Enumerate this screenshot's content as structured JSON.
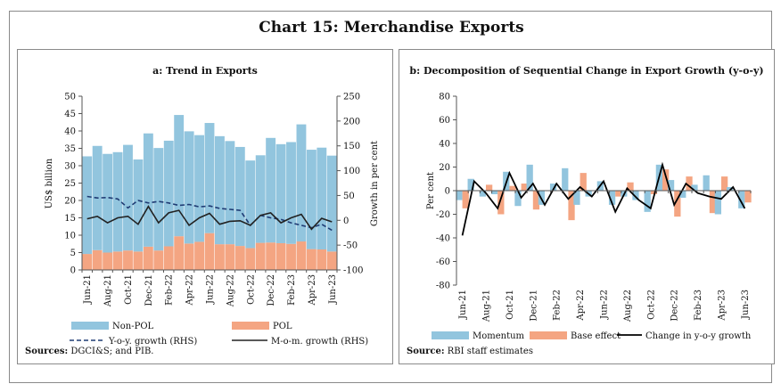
{
  "title": "Chart 15: Merchandise Exports",
  "chart_data": [
    {
      "type": "bar",
      "title": "a: Trend in Exports",
      "ylabel": "US$ billion",
      "y2label": "Growth in per cent",
      "ylim": [
        0,
        50
      ],
      "y2lim": [
        -100,
        250
      ],
      "yticks": [
        0,
        5,
        10,
        15,
        20,
        25,
        30,
        35,
        40,
        45,
        50
      ],
      "y2ticks": [
        -100,
        -50,
        0,
        50,
        100,
        150,
        200,
        250
      ],
      "x": [
        "Jun-21",
        "Jul-21",
        "Aug-21",
        "Sep-21",
        "Oct-21",
        "Nov-21",
        "Dec-21",
        "Jan-22",
        "Feb-22",
        "Mar-22",
        "Apr-22",
        "May-22",
        "Jun-22",
        "Jul-22",
        "Aug-22",
        "Sep-22",
        "Oct-22",
        "Nov-22",
        "Dec-22",
        "Jan-23",
        "Feb-23",
        "Mar-23",
        "Apr-23",
        "May-23",
        "Jun-23"
      ],
      "xtick_labels": [
        "Jun-21",
        "Aug-21",
        "Oct-21",
        "Dec-21",
        "Feb-22",
        "Apr-22",
        "Jun-22",
        "Aug-22",
        "Oct-22",
        "Dec-22",
        "Feb-23",
        "Apr-23",
        "Jun-23"
      ],
      "series": [
        {
          "name": "POL",
          "kind": "bar",
          "color": "#f4a582",
          "values": [
            4.6,
            5.7,
            5.0,
            5.3,
            5.6,
            5.3,
            6.7,
            5.6,
            6.8,
            9.7,
            7.6,
            8.1,
            10.6,
            7.4,
            7.4,
            6.9,
            6.3,
            7.8,
            7.9,
            7.7,
            7.5,
            8.2,
            6.0,
            5.9,
            5.3
          ]
        },
        {
          "name": "Non-POL",
          "kind": "bar",
          "color": "#92c5de",
          "values": [
            28.1,
            30.0,
            28.4,
            28.6,
            30.4,
            26.5,
            32.6,
            29.5,
            30.4,
            34.9,
            32.3,
            30.7,
            31.7,
            31.1,
            29.7,
            28.5,
            25.2,
            25.2,
            30.1,
            28.5,
            29.3,
            33.7,
            28.6,
            29.3,
            27.6
          ]
        },
        {
          "name": "Y-o-y. growth (RHS)",
          "kind": "line",
          "axis": "y2",
          "dash": "dashed",
          "color": "#1f3b73",
          "values": [
            48,
            45,
            46,
            43,
            25,
            40,
            35,
            38,
            35,
            30,
            32,
            27,
            29,
            24,
            22,
            20,
            -10,
            10,
            5,
            2,
            -5,
            -10,
            -15,
            -8,
            -20
          ]
        },
        {
          "name": "M-o-m. growth (RHS)",
          "kind": "line",
          "axis": "y2",
          "dash": "solid",
          "color": "#222222",
          "values": [
            3,
            8,
            -5,
            5,
            8,
            -8,
            28,
            -5,
            15,
            20,
            -10,
            5,
            14,
            -8,
            -2,
            -1,
            -10,
            10,
            15,
            -5,
            5,
            12,
            -18,
            4,
            -3
          ]
        }
      ],
      "legend": [
        "Non-POL",
        "POL",
        "Y-o-y. growth (RHS)",
        "M-o-m. growth (RHS)"
      ],
      "legend_position": "bottom",
      "source_label": "Sources:",
      "source": "DGCI&S; and PIB."
    },
    {
      "type": "bar",
      "title": "b: Decomposition of Sequential Change in Export Growth (y-o-y)",
      "ylabel": "Per cent",
      "ylim": [
        -80,
        80
      ],
      "yticks": [
        -80,
        -60,
        -40,
        -20,
        0,
        20,
        40,
        60,
        80
      ],
      "x": [
        "Jun-21",
        "Jul-21",
        "Aug-21",
        "Sep-21",
        "Oct-21",
        "Nov-21",
        "Dec-21",
        "Jan-22",
        "Feb-22",
        "Mar-22",
        "Apr-22",
        "May-22",
        "Jun-22",
        "Jul-22",
        "Aug-22",
        "Sep-22",
        "Oct-22",
        "Nov-22",
        "Dec-22",
        "Jan-23",
        "Feb-23",
        "Mar-23",
        "Apr-23",
        "May-23",
        "Jun-23"
      ],
      "xtick_labels": [
        "Jun-21",
        "Aug-21",
        "Oct-21",
        "Dec-21",
        "Feb-22",
        "Apr-22",
        "Jun-22",
        "Aug-22",
        "Oct-22",
        "Dec-22",
        "Feb-23",
        "Apr-23",
        "Jun-23"
      ],
      "series": [
        {
          "name": "Momentum",
          "kind": "bar",
          "color": "#92c5de",
          "values": [
            -8,
            10,
            -5,
            -3,
            16,
            -13,
            22,
            -12,
            6,
            19,
            -12,
            -5,
            8,
            -12,
            -5,
            -8,
            -18,
            22,
            9,
            -6,
            5,
            13,
            -20,
            3,
            -15
          ]
        },
        {
          "name": "Base effect",
          "kind": "bar",
          "color": "#f4a582",
          "values": [
            -15,
            0,
            5,
            -20,
            4,
            6,
            -16,
            0,
            0,
            -25,
            15,
            0,
            0,
            -5,
            7,
            0,
            -3,
            18,
            -22,
            12,
            0,
            -19,
            12,
            0,
            -10
          ]
        },
        {
          "name": "Change in y-o-y growth",
          "kind": "line",
          "color": "#000000",
          "values": [
            -38,
            8,
            -2,
            -15,
            15,
            -6,
            6,
            -12,
            6,
            -7,
            3,
            -5,
            8,
            -18,
            2,
            -8,
            -15,
            22,
            -12,
            6,
            -2,
            -5,
            -7,
            3,
            -15
          ]
        }
      ],
      "legend": [
        "Momentum",
        "Base effect",
        "Change in y-o-y growth"
      ],
      "legend_position": "bottom",
      "source_label": "Source:",
      "source": "RBI staff estimates"
    }
  ]
}
